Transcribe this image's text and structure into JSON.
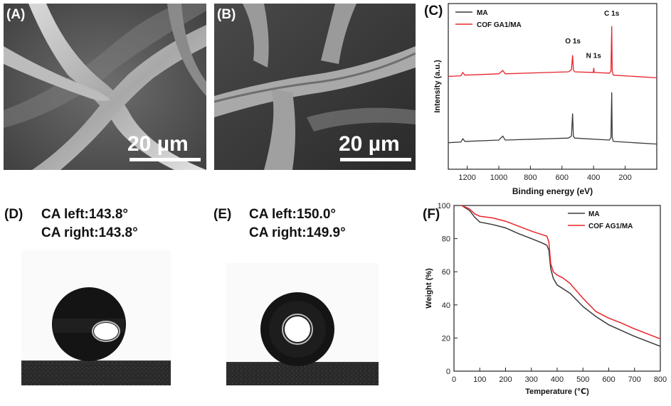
{
  "panels": {
    "a": {
      "label": "(A)",
      "scale": "20 µm"
    },
    "b": {
      "label": "(B)",
      "scale": "20 µm"
    },
    "c": {
      "label": "(C)"
    },
    "d": {
      "label": "(D)",
      "ca_left": "CA left:143.8°",
      "ca_right": "CA right:143.8°"
    },
    "e": {
      "label": "(E)",
      "ca_left": "CA left:150.0°",
      "ca_right": "CA right:149.9°"
    },
    "f": {
      "label": "(F)"
    }
  },
  "colors": {
    "series_ma": "#3a3a3a",
    "series_cof": "#e8232a"
  },
  "chart_data": [
    {
      "type": "line",
      "panel": "C",
      "xlabel": "Binding energy (eV)",
      "ylabel": "Intensity (a.u.)",
      "xlim": [
        1320,
        0
      ],
      "x_reversed": true,
      "xticks": [
        1200,
        1000,
        800,
        600,
        400,
        200
      ],
      "legend": "top-left",
      "series": [
        {
          "name": "MA",
          "color": "#3a3a3a",
          "points": [
            [
              1320,
              0.2
            ],
            [
              1240,
              0.205
            ],
            [
              1228,
              0.23
            ],
            [
              1215,
              0.21
            ],
            [
              1000,
              0.22
            ],
            [
              975,
              0.25
            ],
            [
              960,
              0.22
            ],
            [
              560,
              0.235
            ],
            [
              540,
              0.25
            ],
            [
              533,
              0.42
            ],
            [
              528,
              0.25
            ],
            [
              520,
              0.235
            ],
            [
              300,
              0.22
            ],
            [
              290,
              0.24
            ],
            [
              285,
              0.58
            ],
            [
              282,
              0.24
            ],
            [
              275,
              0.21
            ],
            [
              0,
              0.19
            ]
          ]
        },
        {
          "name": "COF GA1/MA",
          "color": "#e8232a",
          "points": [
            [
              1320,
              0.7
            ],
            [
              1240,
              0.705
            ],
            [
              1228,
              0.73
            ],
            [
              1215,
              0.71
            ],
            [
              1000,
              0.72
            ],
            [
              975,
              0.745
            ],
            [
              960,
              0.72
            ],
            [
              560,
              0.735
            ],
            [
              540,
              0.75
            ],
            [
              533,
              0.86
            ],
            [
              528,
              0.75
            ],
            [
              520,
              0.735
            ],
            [
              402,
              0.73
            ],
            [
              399,
              0.765
            ],
            [
              396,
              0.73
            ],
            [
              300,
              0.725
            ],
            [
              290,
              0.74
            ],
            [
              285,
              1.08
            ],
            [
              282,
              0.74
            ],
            [
              275,
              0.71
            ],
            [
              0,
              0.69
            ]
          ]
        }
      ],
      "annotations": [
        {
          "text": "O 1s",
          "x": 531,
          "y": 0.95
        },
        {
          "text": "N 1s",
          "x": 400,
          "y": 0.84
        },
        {
          "text": "C 1s",
          "x": 285,
          "y": 1.16
        }
      ]
    },
    {
      "type": "line",
      "panel": "F",
      "xlabel": "Temperature (℃)",
      "ylabel": "Weight (%)",
      "xlim": [
        0,
        800
      ],
      "ylim": [
        0,
        100
      ],
      "xticks": [
        0,
        100,
        200,
        300,
        400,
        500,
        600,
        700,
        800
      ],
      "yticks": [
        0,
        20,
        40,
        60,
        80,
        100
      ],
      "legend": "top-right",
      "series": [
        {
          "name": "MA",
          "color": "#3a3a3a",
          "x": [
            30,
            60,
            80,
            100,
            150,
            200,
            250,
            300,
            340,
            360,
            368,
            375,
            385,
            400,
            420,
            450,
            500,
            550,
            600,
            650,
            700,
            750,
            800
          ],
          "y": [
            100,
            97,
            93,
            90,
            88.5,
            86.5,
            83,
            80,
            77.5,
            76,
            73,
            62,
            56,
            52,
            50,
            47,
            39,
            33,
            28,
            24.5,
            21,
            18,
            15
          ]
        },
        {
          "name": "COF AG1/MA",
          "color": "#e8232a",
          "x": [
            30,
            60,
            80,
            100,
            150,
            200,
            250,
            300,
            340,
            360,
            368,
            375,
            385,
            400,
            420,
            450,
            500,
            550,
            600,
            650,
            700,
            750,
            800
          ],
          "y": [
            100,
            98,
            95,
            93.5,
            92.5,
            90.5,
            87.5,
            84.5,
            82.5,
            81.5,
            78,
            65,
            60,
            58,
            56.5,
            53,
            44,
            36,
            32,
            29,
            25.5,
            22.5,
            19.5
          ]
        }
      ]
    }
  ]
}
